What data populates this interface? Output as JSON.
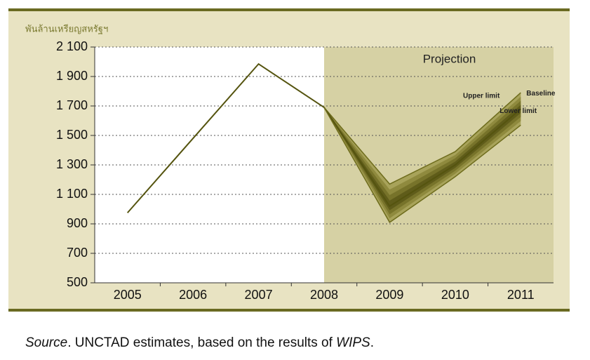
{
  "chart_data": {
    "type": "line",
    "y_label": "พันล้านเหรียญสหรัฐฯ",
    "annotation": "Projection",
    "categories": [
      "2005",
      "2006",
      "2007",
      "2008",
      "2009",
      "2010",
      "2011"
    ],
    "series": [
      {
        "name": "Upper limit",
        "color": "#6e6c1c",
        "values": [
          null,
          null,
          null,
          1690,
          1170,
          1390,
          1790
        ]
      },
      {
        "name": "Baseline",
        "color": "#55540f",
        "values": [
          975,
          1480,
          1985,
          1690,
          1020,
          1300,
          1680
        ]
      },
      {
        "name": "Lower limit",
        "color": "#6e6c1c",
        "values": [
          null,
          null,
          null,
          1690,
          910,
          1220,
          1570
        ]
      }
    ],
    "ylim": [
      500,
      2100
    ],
    "yticks": [
      500,
      700,
      900,
      {
        "value": 1100,
        "label": "1 100"
      },
      {
        "value": 1300,
        "label": "1 300"
      },
      {
        "value": 1500,
        "label": "1 500"
      },
      {
        "value": 1700,
        "label": "1 700"
      },
      {
        "value": 1900,
        "label": "1 900"
      },
      {
        "value": 2100,
        "label": "2 100"
      }
    ],
    "grid": true,
    "source": [
      "Source",
      ". UNCTAD estimates, based on the results of ",
      "WIPS",
      "."
    ]
  }
}
